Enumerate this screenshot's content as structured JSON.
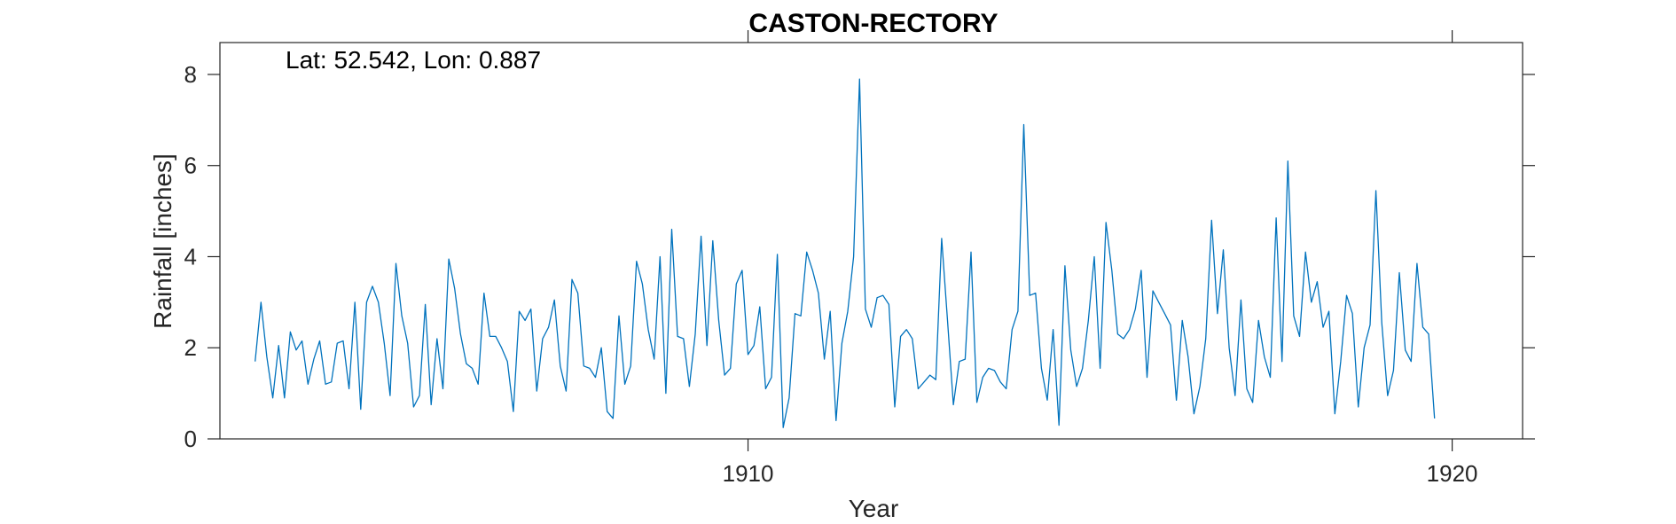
{
  "chart_data": {
    "type": "line",
    "title": "CASTON-RECTORY",
    "xlabel": "Year",
    "ylabel": "Rainfall [inches]",
    "annotation": "Lat: 52.542, Lon: 0.887",
    "xlim": [
      1902.5,
      1921.0
    ],
    "ylim": [
      0,
      8.7
    ],
    "xticks": [
      1910,
      1920
    ],
    "yticks": [
      0,
      2,
      4,
      6,
      8
    ],
    "grid": false,
    "series": [
      {
        "color": "#0072BD",
        "x_start": "1903-01",
        "x_step_months": 1,
        "values": [
          1.7,
          3.0,
          1.8,
          0.9,
          2.05,
          0.9,
          2.35,
          1.95,
          2.15,
          1.2,
          1.75,
          2.15,
          1.2,
          1.25,
          2.1,
          2.15,
          1.1,
          3.0,
          0.65,
          3.0,
          3.35,
          3.0,
          2.1,
          0.95,
          3.85,
          2.7,
          2.1,
          0.7,
          0.95,
          2.95,
          0.75,
          2.2,
          1.1,
          3.95,
          3.3,
          2.3,
          1.65,
          1.55,
          1.2,
          3.2,
          2.25,
          2.25,
          2.0,
          1.7,
          0.6,
          2.8,
          2.6,
          2.85,
          1.05,
          2.2,
          2.45,
          3.05,
          1.6,
          1.05,
          3.5,
          3.2,
          1.6,
          1.55,
          1.35,
          2.0,
          0.6,
          0.45,
          2.7,
          1.2,
          1.6,
          3.9,
          3.4,
          2.4,
          1.75,
          4.0,
          1.0,
          4.6,
          2.25,
          2.2,
          1.15,
          2.3,
          4.45,
          2.05,
          4.35,
          2.6,
          1.4,
          1.55,
          3.4,
          3.7,
          1.85,
          2.05,
          2.9,
          1.1,
          1.35,
          4.05,
          0.25,
          0.9,
          2.75,
          2.7,
          4.1,
          3.7,
          3.2,
          1.75,
          2.8,
          0.4,
          2.1,
          2.8,
          4.0,
          7.9,
          2.85,
          2.45,
          3.1,
          3.15,
          2.95,
          0.7,
          2.25,
          2.4,
          2.2,
          1.1,
          1.25,
          1.4,
          1.3,
          4.4,
          2.6,
          0.75,
          1.7,
          1.75,
          4.1,
          0.8,
          1.35,
          1.55,
          1.5,
          1.25,
          1.1,
          2.4,
          2.8,
          6.9,
          3.15,
          3.2,
          1.55,
          0.85,
          2.4,
          0.3,
          3.8,
          1.95,
          1.15,
          1.55,
          2.6,
          4.0,
          1.55,
          4.75,
          3.7,
          2.3,
          2.2,
          2.4,
          2.85,
          3.7,
          1.35,
          3.25,
          3.0,
          2.75,
          2.5,
          0.85,
          2.6,
          1.8,
          0.55,
          1.15,
          2.2,
          4.8,
          2.75,
          4.15,
          2.0,
          0.95,
          3.05,
          1.1,
          0.8,
          2.6,
          1.8,
          1.35,
          4.85,
          1.7,
          6.1,
          2.7,
          2.25,
          4.1,
          3.0,
          3.45,
          2.45,
          2.8,
          0.55,
          1.7,
          3.15,
          2.75,
          0.7,
          2.0,
          2.5,
          5.45,
          2.55,
          0.95,
          1.5,
          3.65,
          1.95,
          1.7,
          3.85,
          2.45,
          2.3,
          0.45
        ]
      }
    ]
  }
}
